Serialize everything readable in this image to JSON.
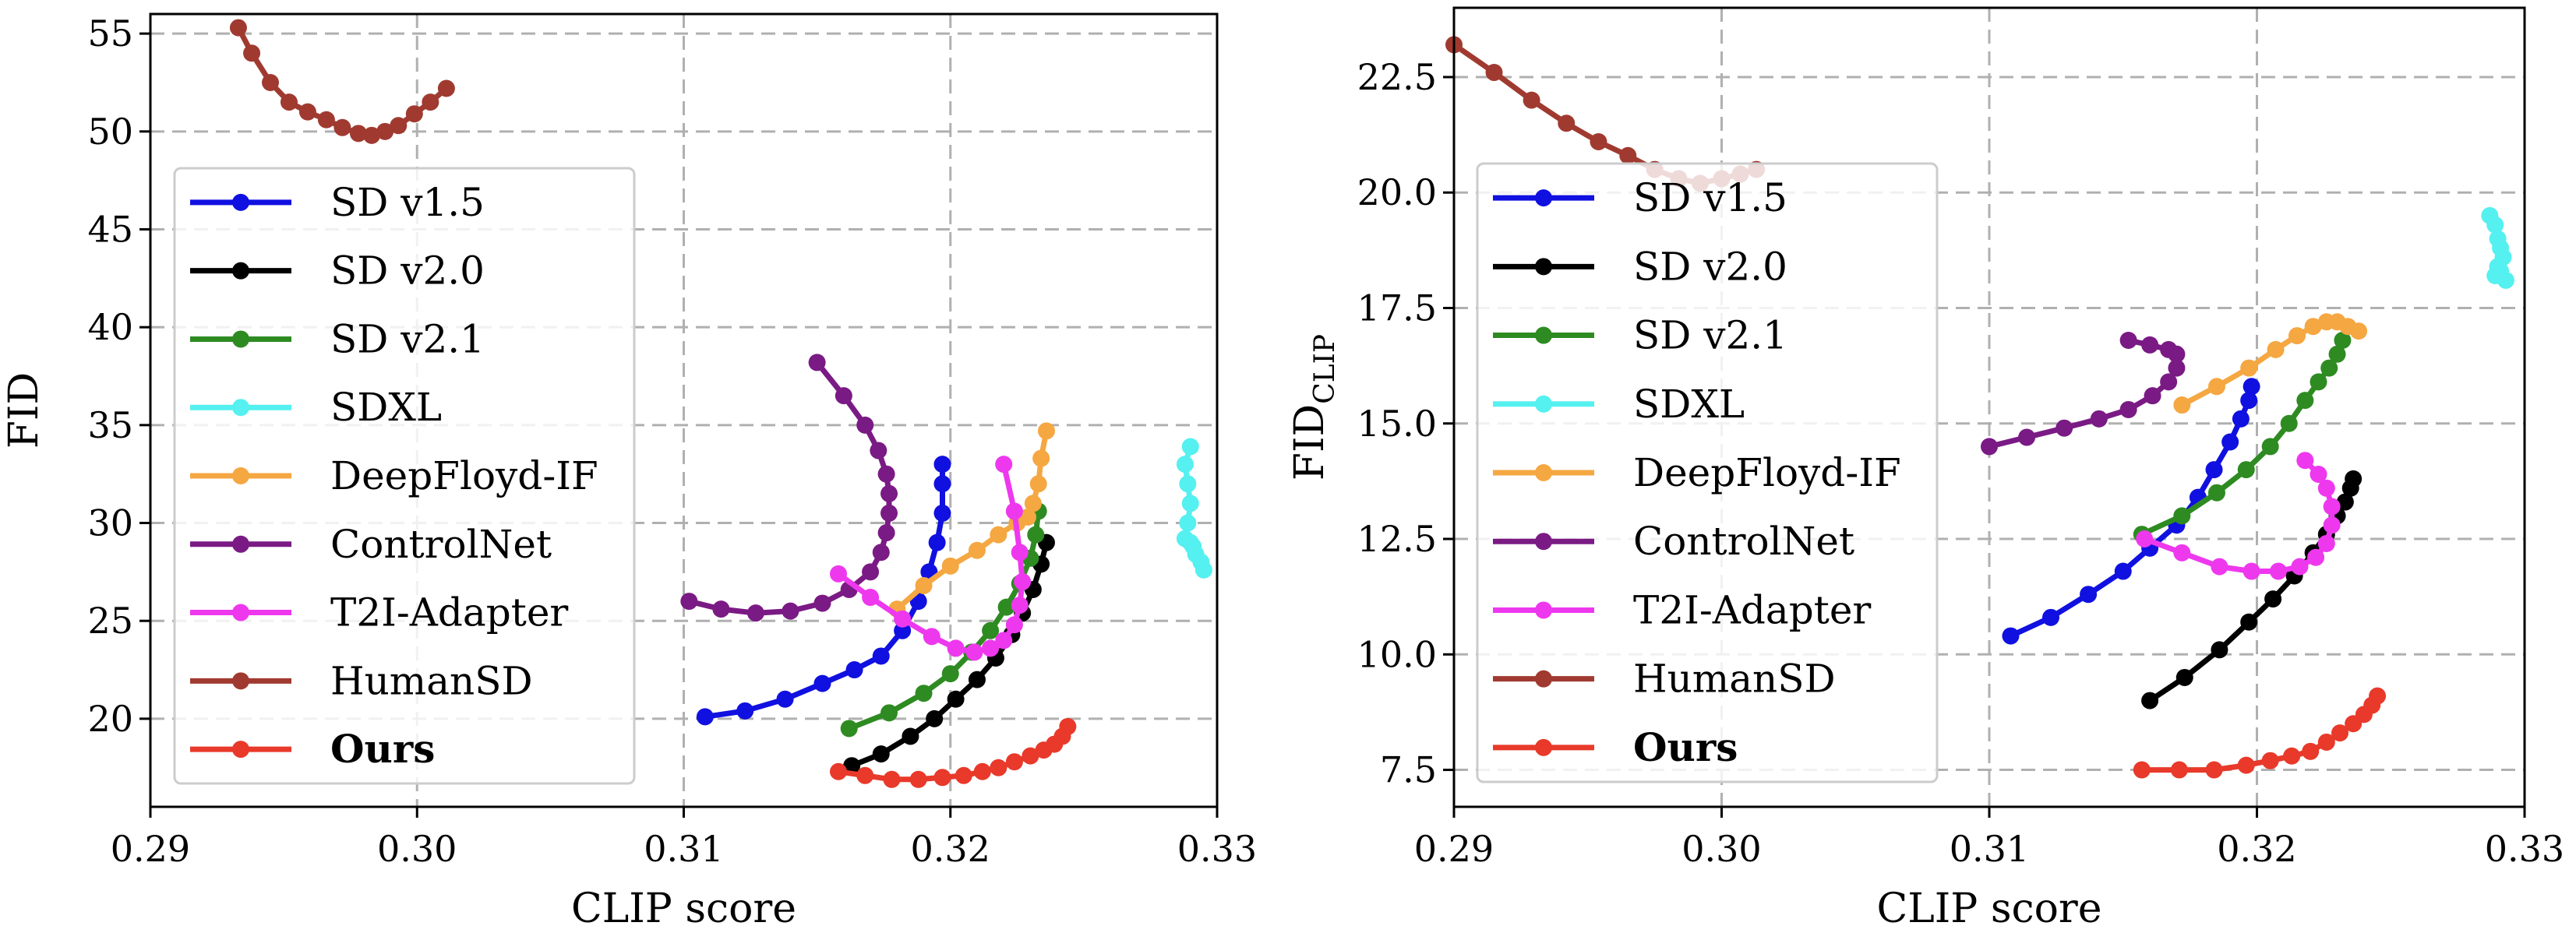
{
  "chart_data": [
    {
      "type": "line",
      "xlabel": "CLIP score",
      "ylabel": "FID",
      "ylabel_sub": "",
      "xlim": [
        0.29,
        0.33
      ],
      "ylim": [
        15.5,
        56
      ],
      "xticks": [
        0.29,
        0.3,
        0.31,
        0.32,
        0.33
      ],
      "xtick_labels": [
        "0.29",
        "0.30",
        "0.31",
        "0.32",
        "0.33"
      ],
      "yticks": [
        20,
        25,
        30,
        35,
        40,
        45,
        50,
        55
      ],
      "ytick_labels": [
        "20",
        "25",
        "30",
        "35",
        "40",
        "45",
        "50",
        "55"
      ],
      "grid": true,
      "legend_placement": "center-left",
      "series": [
        {
          "name": "SD v1.5",
          "color": "#1010e0",
          "bold": false,
          "x": [
            0.3108,
            0.3123,
            0.3138,
            0.3152,
            0.3164,
            0.3174,
            0.3182,
            0.3188,
            0.3192,
            0.3195,
            0.3197,
            0.3197,
            0.3197
          ],
          "y": [
            20.1,
            20.4,
            21.0,
            21.8,
            22.5,
            23.2,
            24.5,
            26.0,
            27.5,
            29.0,
            30.5,
            32.0,
            33.0
          ]
        },
        {
          "name": "SD v2.0",
          "color": "#000000",
          "bold": false,
          "x": [
            0.3163,
            0.3174,
            0.3185,
            0.3194,
            0.3202,
            0.321,
            0.3217,
            0.3223,
            0.3227,
            0.3231,
            0.3234,
            0.3236
          ],
          "y": [
            17.6,
            18.2,
            19.1,
            20.0,
            21.0,
            22.0,
            23.1,
            24.3,
            25.4,
            26.6,
            27.9,
            29.0
          ]
        },
        {
          "name": "SD v2.1",
          "color": "#2e8b22",
          "bold": false,
          "x": [
            0.3162,
            0.3177,
            0.319,
            0.32,
            0.3208,
            0.3215,
            0.3221,
            0.3226,
            0.323,
            0.3232,
            0.3233
          ],
          "y": [
            19.5,
            20.3,
            21.3,
            22.3,
            23.4,
            24.5,
            25.7,
            26.9,
            28.2,
            29.4,
            30.6
          ]
        },
        {
          "name": "SDXL",
          "color": "#55f0f0",
          "bold": false,
          "x": [
            0.329,
            0.3288,
            0.3289,
            0.329,
            0.3289,
            0.3288,
            0.329,
            0.3291,
            0.3292,
            0.3294,
            0.3295
          ],
          "y": [
            33.9,
            33.0,
            32.0,
            31.0,
            30.0,
            29.2,
            29.0,
            28.8,
            28.4,
            28.0,
            27.6
          ]
        },
        {
          "name": "DeepFloyd-IF",
          "color": "#f5a742",
          "bold": false,
          "x": [
            0.318,
            0.319,
            0.32,
            0.321,
            0.3218,
            0.3225,
            0.3229,
            0.3231,
            0.3233,
            0.3234,
            0.3236
          ],
          "y": [
            25.6,
            26.8,
            27.8,
            28.6,
            29.4,
            30.0,
            30.3,
            31.0,
            32.0,
            33.3,
            34.7
          ]
        },
        {
          "name": "ControlNet",
          "color": "#7a1a84",
          "bold": false,
          "x": [
            0.3102,
            0.3114,
            0.3127,
            0.314,
            0.3152,
            0.3162,
            0.317,
            0.3174,
            0.3176,
            0.3177,
            0.3177,
            0.3176,
            0.3173,
            0.3168,
            0.316,
            0.315
          ],
          "y": [
            26.0,
            25.6,
            25.4,
            25.5,
            25.9,
            26.6,
            27.5,
            28.5,
            29.5,
            30.5,
            31.5,
            32.5,
            33.7,
            35.0,
            36.5,
            38.2
          ]
        },
        {
          "name": "T2I-Adapter",
          "color": "#ee38ee",
          "bold": false,
          "x": [
            0.3158,
            0.317,
            0.3182,
            0.3193,
            0.3202,
            0.3209,
            0.3215,
            0.322,
            0.3224,
            0.3226,
            0.3227,
            0.3226,
            0.3224,
            0.322
          ],
          "y": [
            27.4,
            26.2,
            25.1,
            24.2,
            23.6,
            23.4,
            23.6,
            24.0,
            24.8,
            25.8,
            27.0,
            28.5,
            30.6,
            33.0
          ]
        },
        {
          "name": "HumanSD",
          "color": "#a03a30",
          "bold": false,
          "x": [
            0.2933,
            0.2938,
            0.2945,
            0.2952,
            0.2959,
            0.2966,
            0.2972,
            0.2978,
            0.2983,
            0.2988,
            0.2993,
            0.2999,
            0.3005,
            0.3011
          ],
          "y": [
            55.3,
            54.0,
            52.5,
            51.5,
            51.0,
            50.6,
            50.2,
            49.9,
            49.8,
            50.0,
            50.3,
            50.9,
            51.5,
            52.2
          ]
        },
        {
          "name": "Ours",
          "color": "#e8392a",
          "bold": true,
          "x": [
            0.3158,
            0.3168,
            0.3178,
            0.3188,
            0.3197,
            0.3205,
            0.3212,
            0.3218,
            0.3224,
            0.323,
            0.3235,
            0.3239,
            0.3242,
            0.3244
          ],
          "y": [
            17.3,
            17.1,
            16.9,
            16.9,
            17.0,
            17.1,
            17.3,
            17.5,
            17.8,
            18.1,
            18.4,
            18.7,
            19.1,
            19.6
          ]
        }
      ]
    },
    {
      "type": "line",
      "xlabel": "CLIP score",
      "ylabel": "FID",
      "ylabel_sub": "CLIP",
      "xlim": [
        0.29,
        0.33
      ],
      "ylim": [
        6.7,
        24.0
      ],
      "xticks": [
        0.29,
        0.3,
        0.31,
        0.32,
        0.33
      ],
      "xtick_labels": [
        "0.29",
        "0.30",
        "0.31",
        "0.32",
        "0.33"
      ],
      "yticks": [
        7.5,
        10.0,
        12.5,
        15.0,
        17.5,
        20.0,
        22.5
      ],
      "ytick_labels": [
        "7.5",
        "10.0",
        "12.5",
        "15.0",
        "17.5",
        "20.0",
        "22.5"
      ],
      "grid": true,
      "legend_placement": "center-left",
      "series": [
        {
          "name": "SD v1.5",
          "color": "#1010e0",
          "bold": false,
          "x": [
            0.3108,
            0.3123,
            0.3137,
            0.315,
            0.316,
            0.317,
            0.3178,
            0.3184,
            0.319,
            0.3194,
            0.3197,
            0.3198
          ],
          "y": [
            10.4,
            10.8,
            11.3,
            11.8,
            12.3,
            12.8,
            13.4,
            14.0,
            14.6,
            15.1,
            15.5,
            15.8
          ]
        },
        {
          "name": "SD v2.0",
          "color": "#000000",
          "bold": false,
          "x": [
            0.316,
            0.3173,
            0.3186,
            0.3197,
            0.3206,
            0.3214,
            0.3221,
            0.3226,
            0.323,
            0.3233,
            0.3235,
            0.3236
          ],
          "y": [
            9.0,
            9.5,
            10.1,
            10.7,
            11.2,
            11.7,
            12.2,
            12.6,
            13.0,
            13.3,
            13.6,
            13.8
          ]
        },
        {
          "name": "SD v2.1",
          "color": "#2e8b22",
          "bold": false,
          "x": [
            0.3157,
            0.3172,
            0.3185,
            0.3196,
            0.3205,
            0.3212,
            0.3218,
            0.3223,
            0.3227,
            0.323,
            0.3232
          ],
          "y": [
            12.6,
            13.0,
            13.5,
            14.0,
            14.5,
            15.0,
            15.5,
            15.9,
            16.2,
            16.5,
            16.8
          ]
        },
        {
          "name": "SDXL",
          "color": "#55f0f0",
          "bold": false,
          "x": [
            0.3287,
            0.3289,
            0.329,
            0.3291,
            0.3292,
            0.329,
            0.3289,
            0.3291,
            0.3293
          ],
          "y": [
            19.5,
            19.3,
            19.0,
            18.8,
            18.6,
            18.4,
            18.2,
            18.3,
            18.1
          ]
        },
        {
          "name": "DeepFloyd-IF",
          "color": "#f5a742",
          "bold": false,
          "x": [
            0.3172,
            0.3185,
            0.3197,
            0.3207,
            0.3215,
            0.3221,
            0.3226,
            0.323,
            0.3234,
            0.3238
          ],
          "y": [
            15.4,
            15.8,
            16.2,
            16.6,
            16.9,
            17.1,
            17.2,
            17.2,
            17.1,
            17.0
          ]
        },
        {
          "name": "ControlNet",
          "color": "#7a1a84",
          "bold": false,
          "x": [
            0.31,
            0.3114,
            0.3128,
            0.3141,
            0.3152,
            0.3161,
            0.3167,
            0.317,
            0.317,
            0.3167,
            0.316,
            0.3152
          ],
          "y": [
            14.5,
            14.7,
            14.9,
            15.1,
            15.3,
            15.6,
            15.9,
            16.2,
            16.5,
            16.6,
            16.7,
            16.8
          ]
        },
        {
          "name": "T2I-Adapter",
          "color": "#ee38ee",
          "bold": false,
          "x": [
            0.3158,
            0.3172,
            0.3186,
            0.3198,
            0.3208,
            0.3216,
            0.3222,
            0.3226,
            0.3228,
            0.3228,
            0.3226,
            0.3223,
            0.3218
          ],
          "y": [
            12.5,
            12.2,
            11.9,
            11.8,
            11.8,
            11.9,
            12.1,
            12.4,
            12.8,
            13.2,
            13.6,
            13.9,
            14.2
          ]
        },
        {
          "name": "HumanSD",
          "color": "#a03a30",
          "bold": false,
          "x": [
            0.29,
            0.2915,
            0.2929,
            0.2942,
            0.2954,
            0.2965,
            0.2975,
            0.2984,
            0.2992,
            0.3,
            0.3007,
            0.3013
          ],
          "y": [
            23.2,
            22.6,
            22.0,
            21.5,
            21.1,
            20.8,
            20.5,
            20.3,
            20.2,
            20.3,
            20.4,
            20.5
          ]
        },
        {
          "name": "Ours",
          "color": "#e8392a",
          "bold": true,
          "x": [
            0.3157,
            0.3171,
            0.3184,
            0.3196,
            0.3205,
            0.3213,
            0.322,
            0.3226,
            0.3231,
            0.3236,
            0.324,
            0.3243,
            0.3245
          ],
          "y": [
            7.5,
            7.5,
            7.5,
            7.6,
            7.7,
            7.8,
            7.9,
            8.1,
            8.3,
            8.5,
            8.7,
            8.9,
            9.1
          ]
        }
      ]
    }
  ]
}
